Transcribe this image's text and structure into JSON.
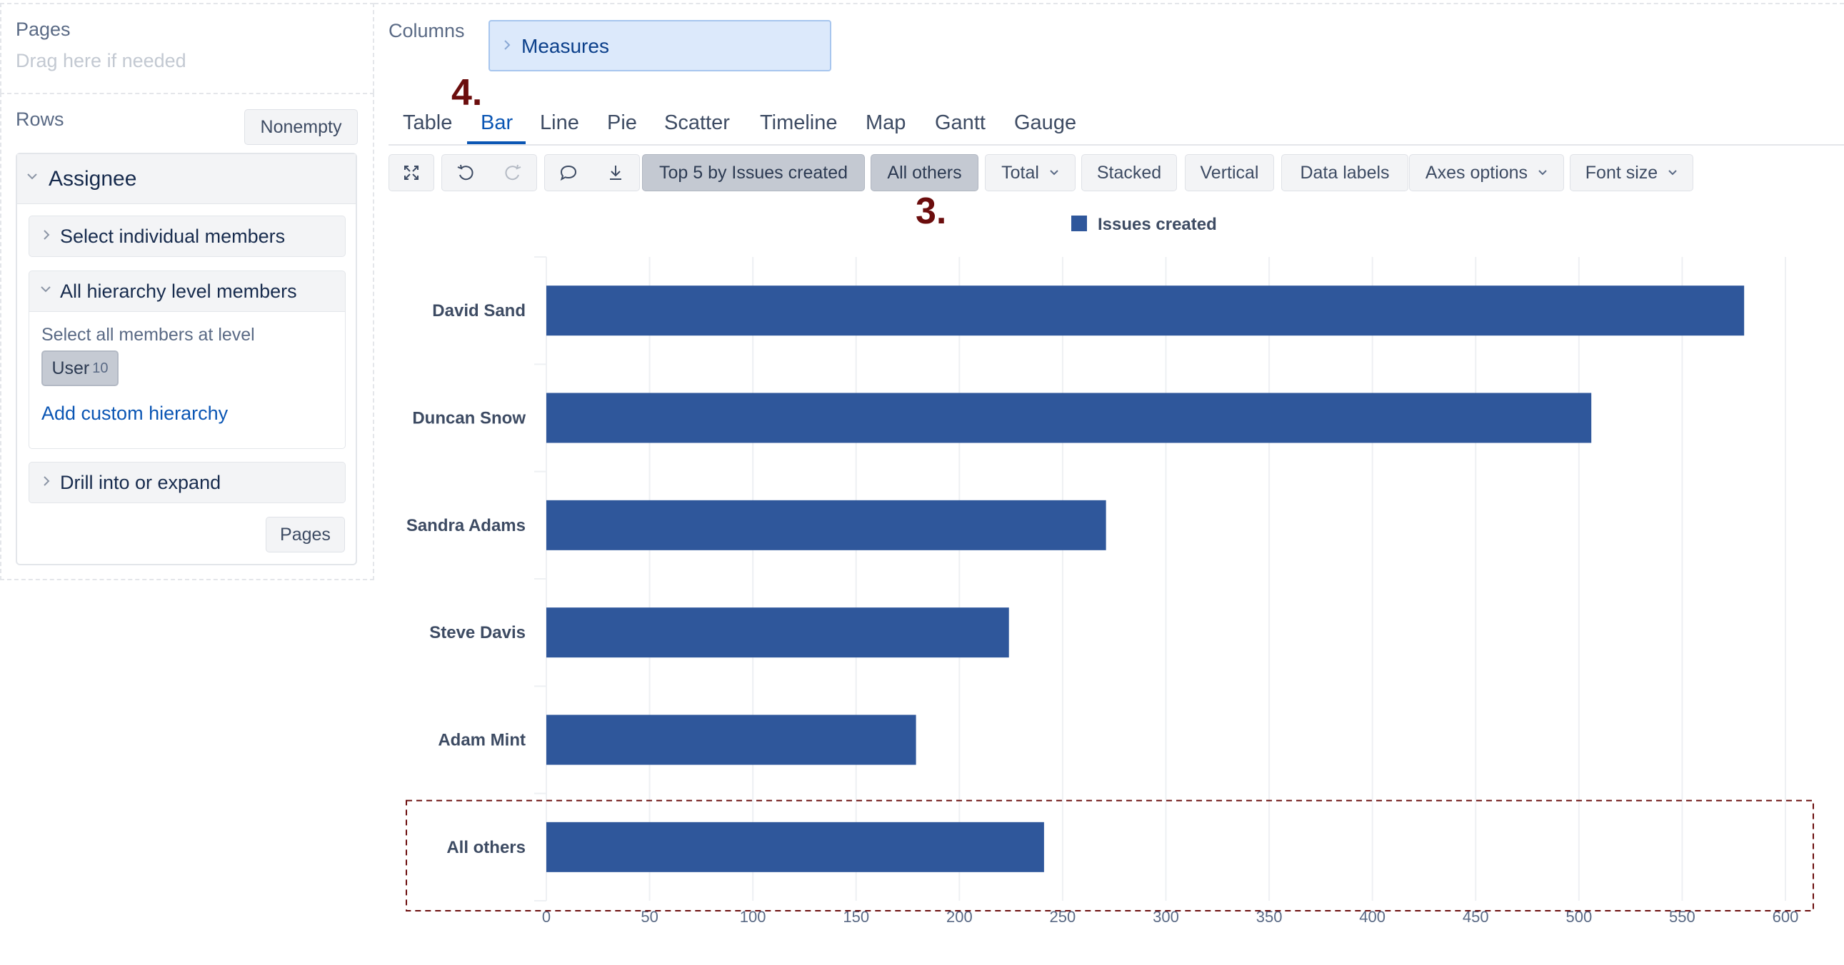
{
  "left_panel": {
    "pages": {
      "title": "Pages",
      "hint": "Drag here if needed"
    },
    "rows": {
      "title": "Rows",
      "nonempty_label": "Nonempty",
      "dimension": {
        "name": "Assignee",
        "select_individual_label": "Select individual members",
        "all_level_label": "All hierarchy level members",
        "select_all_text": "Select all members at level",
        "level_chip": {
          "name": "User",
          "count": "10"
        },
        "add_custom_label": "Add custom hierarchy",
        "drill_label": "Drill into or expand",
        "pages_button": "Pages"
      }
    }
  },
  "columns": {
    "title": "Columns",
    "measures_label": "Measures"
  },
  "view_tabs": {
    "items": [
      "Table",
      "Bar",
      "Line",
      "Pie",
      "Scatter",
      "Timeline",
      "Map",
      "Gantt",
      "Gauge"
    ],
    "active": "Bar"
  },
  "annotations": {
    "step_four": "4.",
    "step_three": "3."
  },
  "toolbar": {
    "icons": [
      "fullscreen-icon",
      "undo-icon",
      "redo-icon",
      "comment-icon",
      "download-icon"
    ],
    "top5_label": "Top 5 by Issues created",
    "all_others_label": "All others",
    "total_label": "Total",
    "stacked_label": "Stacked",
    "vertical_label": "Vertical",
    "data_labels_label": "Data labels",
    "axes_options_label": "Axes options",
    "font_size_label": "Font size"
  },
  "colors": {
    "bar": "#2f579b",
    "accent": "#0b56b4",
    "annotation": "#6b0d0d",
    "grid": "#eef0f3"
  },
  "chart_data": {
    "type": "bar",
    "orientation": "horizontal",
    "categories": [
      "David Sand",
      "Duncan Snow",
      "Sandra Adams",
      "Steve Davis",
      "Adam Mint",
      "All others"
    ],
    "series": [
      {
        "name": "Issues created",
        "values": [
          580,
          506,
          271,
          224,
          179,
          241
        ]
      }
    ],
    "xlim": [
      0,
      600
    ],
    "x_ticks": [
      0,
      50,
      100,
      150,
      200,
      250,
      300,
      350,
      400,
      450,
      500,
      550,
      600
    ],
    "grid": true,
    "legend": "top-center",
    "highlighted_category": "All others"
  }
}
